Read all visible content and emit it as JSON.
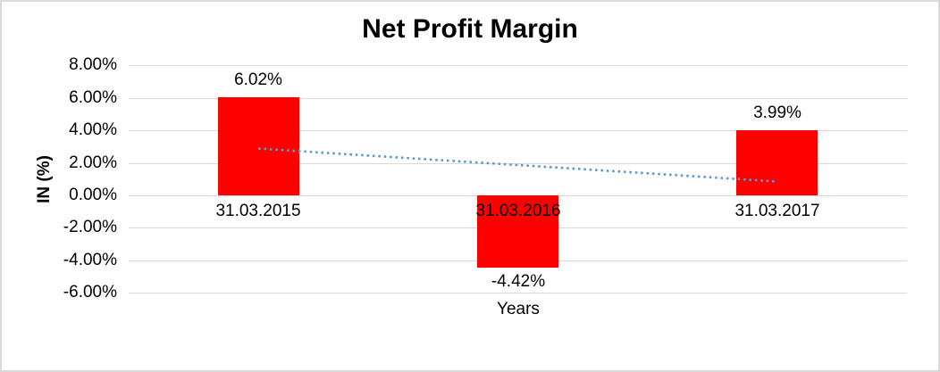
{
  "chart_data": {
    "type": "bar",
    "title": "Net Profit Margin",
    "xlabel": "Years",
    "ylabel": "IN (%)",
    "categories": [
      "31.03.2015",
      "31.03.2016",
      "31.03.2017"
    ],
    "values": [
      6.02,
      -4.42,
      3.99
    ],
    "value_labels": [
      "6.02%",
      "-4.42%",
      "3.99%"
    ],
    "yticks": [
      {
        "value": 8,
        "label": "8.00%"
      },
      {
        "value": 6,
        "label": "6.00%"
      },
      {
        "value": 4,
        "label": "4.00%"
      },
      {
        "value": 2,
        "label": "2.00%"
      },
      {
        "value": 0,
        "label": "0.00%"
      },
      {
        "value": -2,
        "label": "-2.00%"
      },
      {
        "value": -4,
        "label": "-4.00%"
      },
      {
        "value": -6,
        "label": "-6.00%"
      }
    ],
    "ylim": [
      -6,
      8
    ],
    "grid": true,
    "legend": "none",
    "bar_color": "#FF0000",
    "gridline_color": "#D9D9D9",
    "text_color": "#000000",
    "border_color": "#D9D9D9",
    "background_color": "#FFFFFF",
    "trendline": {
      "type": "linear",
      "style": "dotted",
      "color": "#5B9BD5",
      "start_value": 2.88,
      "end_value": 0.85
    }
  }
}
